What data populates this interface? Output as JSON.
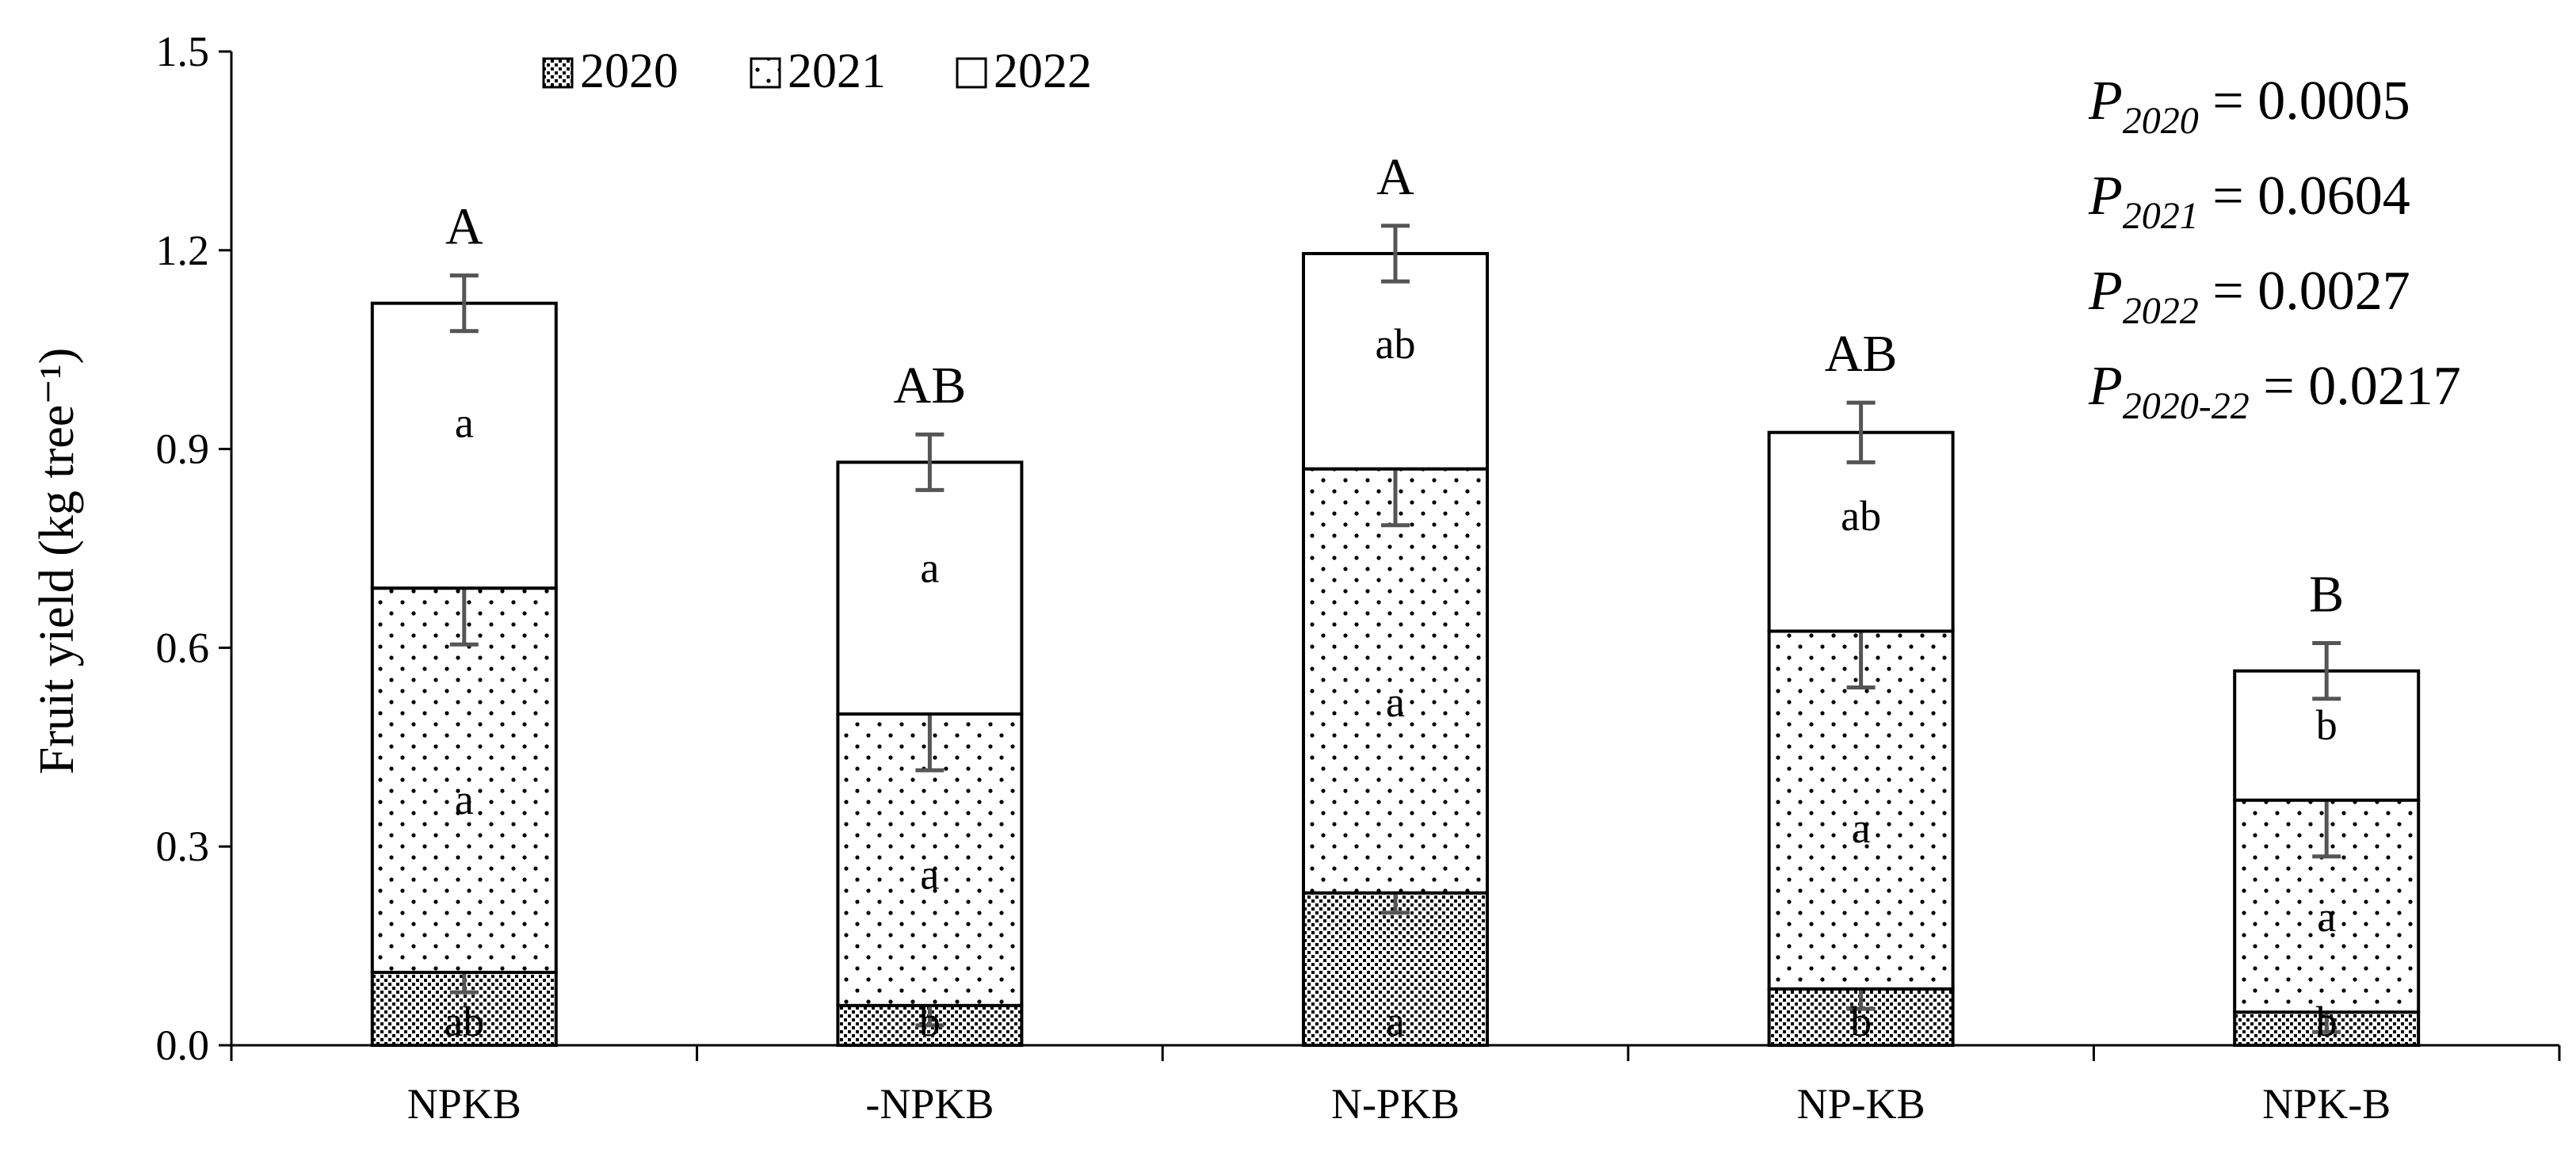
{
  "chart_data": {
    "type": "bar",
    "stacked": true,
    "categories": [
      "NPKB",
      "-NPKB",
      "N-PKB",
      "NP-KB",
      "NPK-B"
    ],
    "ylabel": "Fruit yield (kg tree⁻¹)",
    "ylim": [
      0,
      1.5
    ],
    "yticks": [
      "0.0",
      "0.3",
      "0.6",
      "0.9",
      "1.2",
      "1.5"
    ],
    "legend_position": "top-center",
    "series": [
      {
        "name": "2020",
        "pattern": "dense-dots",
        "values": [
          0.11,
          0.06,
          0.23,
          0.085,
          0.05
        ],
        "errors": [
          0.03,
          0.03,
          0.03,
          0.03,
          0.03
        ],
        "letters": [
          "ab",
          "b",
          "a",
          "b",
          "b"
        ]
      },
      {
        "name": "2021",
        "pattern": "sparse-dots",
        "values": [
          0.58,
          0.44,
          0.64,
          0.54,
          0.32
        ],
        "errors": [
          0.085,
          0.085,
          0.085,
          0.085,
          0.085
        ],
        "letters": [
          "a",
          "a",
          "a",
          "a",
          "a"
        ]
      },
      {
        "name": "2022",
        "pattern": "none",
        "values": [
          0.43,
          0.38,
          0.325,
          0.3,
          0.195
        ],
        "errors": [
          0.042,
          0.042,
          0.042,
          0.045,
          0.042
        ],
        "letters": [
          "a",
          "a",
          "ab",
          "ab",
          "b"
        ]
      }
    ],
    "total_letters": [
      "A",
      "AB",
      "A",
      "AB",
      "B"
    ],
    "annotations": [
      {
        "p": "P",
        "sub": "2020",
        "rest": " = 0.0005"
      },
      {
        "p": "P",
        "sub": "2021",
        "rest": " = 0.0604"
      },
      {
        "p": "P",
        "sub": "2022",
        "rest": " = 0.0027"
      },
      {
        "p": "P",
        "sub": "2020-22",
        "rest": " = 0.0217"
      }
    ],
    "colors": {
      "bar_outline": "#000000",
      "error_bar": "#555555",
      "fill": "#ffffff"
    }
  }
}
